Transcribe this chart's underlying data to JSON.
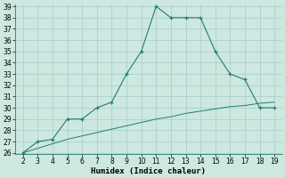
{
  "xlabel": "Humidex (Indice chaleur)",
  "x": [
    2,
    3,
    4,
    5,
    6,
    7,
    8,
    9,
    10,
    11,
    12,
    13,
    14,
    15,
    16,
    17,
    18,
    19
  ],
  "y_curve": [
    26,
    27,
    27.2,
    29,
    29,
    30,
    30.5,
    33,
    35,
    39,
    38,
    38,
    38,
    35,
    33,
    32.5,
    30,
    30
  ],
  "y_line": [
    26,
    26.4,
    26.8,
    27.2,
    27.5,
    27.8,
    28.1,
    28.4,
    28.7,
    29.0,
    29.2,
    29.5,
    29.7,
    29.9,
    30.1,
    30.2,
    30.4,
    30.5
  ],
  "ylim_min": 26,
  "ylim_max": 39,
  "xlim_min": 1.5,
  "xlim_max": 19.5,
  "yticks": [
    26,
    27,
    28,
    29,
    30,
    31,
    32,
    33,
    34,
    35,
    36,
    37,
    38,
    39
  ],
  "xticks": [
    2,
    3,
    4,
    5,
    6,
    7,
    8,
    9,
    10,
    11,
    12,
    13,
    14,
    15,
    16,
    17,
    18,
    19
  ],
  "line_color": "#267b6e",
  "bg_color": "#cce8e0",
  "grid_color": "#a8ccc5",
  "font_color": "#000000",
  "tick_fontsize": 5.5,
  "label_fontsize": 6.5
}
